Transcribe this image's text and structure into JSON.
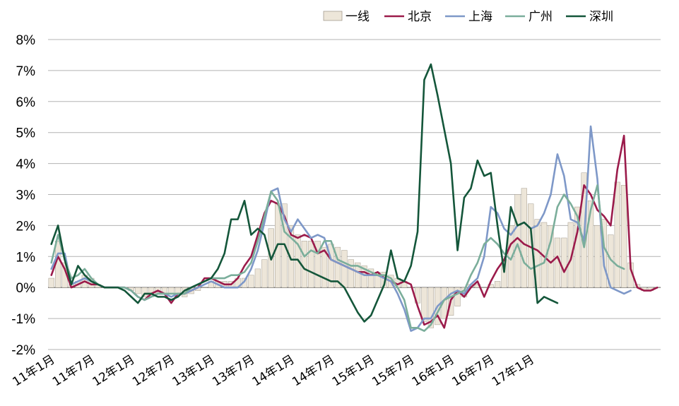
{
  "chart_data": {
    "type": "bar",
    "title": "",
    "xlabel": "",
    "ylabel": "",
    "ylim": [
      -2,
      8
    ],
    "y_ticks": [
      "-2%",
      "-1%",
      "0%",
      "1%",
      "2%",
      "3%",
      "4%",
      "5%",
      "6%",
      "7%",
      "8%"
    ],
    "y_tick_values": [
      -2,
      -1,
      0,
      1,
      2,
      3,
      4,
      5,
      6,
      7,
      8
    ],
    "x_tick_labels": [
      "11年1月",
      "11年7月",
      "12年1月",
      "12年7月",
      "13年1月",
      "13年7月",
      "14年1月",
      "14年7月",
      "15年1月",
      "15年7月",
      "16年1月",
      "16年7月",
      "17年1月"
    ],
    "legend_position": "top-right",
    "grid": "horizontal",
    "series": [
      {
        "name": "一线",
        "type": "bar",
        "color": "#EDE6D9",
        "values": [
          0.3,
          1.5,
          0.8,
          0.1,
          0.2,
          0.4,
          0.3,
          0.1,
          0.0,
          0.0,
          0.0,
          0.0,
          -0.1,
          -0.2,
          -0.3,
          -0.3,
          -0.2,
          -0.2,
          -0.2,
          -0.2,
          -0.3,
          -0.2,
          -0.1,
          0.0,
          0.2,
          0.2,
          0.2,
          0.2,
          0.3,
          0.3,
          0.4,
          0.6,
          0.9,
          1.9,
          2.7,
          2.7,
          2.0,
          1.7,
          1.5,
          1.5,
          1.5,
          1.3,
          1.4,
          1.3,
          1.2,
          0.9,
          0.8,
          0.7,
          0.6,
          0.5,
          0.5,
          0.4,
          0.3,
          0.2,
          0.0,
          -0.5,
          -1.1,
          -1.3,
          -1.2,
          -1.0,
          -0.9,
          -0.6,
          -0.3,
          0.1,
          0.1,
          0.0,
          0.1,
          0.2,
          0.9,
          2.0,
          3.0,
          3.2,
          2.7,
          2.2,
          2.1,
          2.0,
          1.6,
          1.6,
          2.1,
          2.6,
          3.7,
          2.8,
          2.0,
          2.2,
          1.7,
          3.4,
          3.3,
          0.8,
          0.1,
          -0.1,
          -0.1,
          0.0
        ]
      },
      {
        "name": "北京",
        "type": "line",
        "color": "#9B1B4B",
        "values": [
          0.4,
          1.0,
          0.6,
          0.0,
          0.1,
          0.2,
          0.1,
          0.1,
          0.0,
          0.0,
          0.0,
          0.0,
          -0.1,
          -0.3,
          -0.4,
          -0.2,
          -0.1,
          -0.2,
          -0.5,
          -0.2,
          -0.2,
          -0.1,
          0.0,
          0.3,
          0.3,
          0.2,
          0.1,
          0.1,
          0.3,
          0.7,
          1.0,
          1.7,
          2.4,
          2.8,
          2.7,
          2.3,
          1.7,
          1.6,
          1.7,
          1.6,
          1.1,
          1.2,
          0.9,
          0.8,
          0.7,
          0.6,
          0.5,
          0.5,
          0.4,
          0.5,
          0.3,
          0.2,
          0.1,
          0.2,
          0.1,
          -0.6,
          -1.2,
          -1.1,
          -0.9,
          -1.3,
          -0.4,
          -0.1,
          -0.3,
          0.0,
          0.2,
          -0.3,
          0.2,
          0.6,
          0.9,
          1.4,
          1.6,
          1.4,
          1.3,
          1.2,
          1.0,
          0.8,
          1.0,
          0.5,
          0.9,
          1.8,
          3.3,
          3.0,
          2.5,
          2.3,
          2.0,
          3.8,
          4.9,
          0.6,
          0.0,
          -0.1,
          -0.1,
          0.0
        ]
      },
      {
        "name": "上海",
        "type": "line",
        "color": "#7E98C8",
        "values": [
          0.6,
          1.1,
          1.1,
          0.1,
          0.2,
          0.3,
          0.2,
          0.1,
          0.0,
          0.0,
          0.0,
          0.0,
          -0.1,
          -0.3,
          -0.4,
          -0.3,
          -0.2,
          -0.2,
          -0.3,
          -0.2,
          -0.2,
          -0.1,
          0.0,
          0.1,
          0.2,
          0.1,
          0.0,
          0.0,
          0.0,
          0.2,
          0.6,
          1.2,
          2.1,
          3.1,
          3.2,
          2.2,
          1.8,
          2.2,
          1.9,
          1.6,
          1.7,
          1.6,
          0.9,
          0.8,
          0.7,
          0.6,
          0.5,
          0.4,
          0.4,
          0.4,
          0.3,
          0.2,
          -0.2,
          -0.7,
          -1.4,
          -1.3,
          -1.0,
          -1.0,
          -0.6,
          -0.4,
          -0.2,
          -0.1,
          -0.2,
          0.1,
          0.3,
          1.0,
          2.6,
          2.4,
          1.9,
          1.7,
          2.0,
          2.1,
          1.9,
          2.0,
          2.4,
          3.0,
          4.3,
          3.6,
          2.2,
          2.1,
          1.5,
          5.2,
          3.5,
          0.7,
          0.0,
          -0.1,
          -0.2,
          -0.1
        ]
      },
      {
        "name": "广州",
        "type": "line",
        "color": "#7BAE9B",
        "values": [
          0.8,
          1.7,
          0.9,
          0.3,
          0.4,
          0.6,
          0.3,
          0.1,
          0.0,
          0.0,
          0.0,
          0.0,
          -0.1,
          -0.3,
          -0.4,
          -0.3,
          -0.2,
          -0.2,
          -0.2,
          -0.2,
          -0.2,
          0.0,
          0.1,
          0.2,
          0.3,
          0.3,
          0.3,
          0.4,
          0.4,
          0.5,
          0.8,
          1.5,
          2.3,
          3.1,
          2.8,
          1.8,
          1.6,
          1.4,
          1.0,
          1.2,
          1.1,
          1.5,
          1.5,
          0.9,
          0.8,
          0.7,
          0.7,
          0.6,
          0.5,
          0.4,
          0.4,
          0.3,
          0.0,
          -0.4,
          -1.3,
          -1.3,
          -1.4,
          -1.2,
          -0.8,
          -0.4,
          -0.3,
          -0.2,
          -0.1,
          0.4,
          0.8,
          1.4,
          1.6,
          1.4,
          1.1,
          0.9,
          1.4,
          0.8,
          0.6,
          0.7,
          0.8,
          1.5,
          2.6,
          3.0,
          2.7,
          2.3,
          1.3,
          2.5,
          3.3,
          1.3,
          0.9,
          0.7,
          0.6
        ]
      },
      {
        "name": "深圳",
        "type": "line",
        "color": "#14563A",
        "values": [
          1.4,
          2.0,
          0.9,
          0.1,
          0.7,
          0.4,
          0.2,
          0.1,
          0.0,
          0.0,
          0.0,
          -0.1,
          -0.3,
          -0.5,
          -0.2,
          -0.2,
          -0.3,
          -0.3,
          -0.4,
          -0.3,
          -0.1,
          0.0,
          0.1,
          0.2,
          0.3,
          0.6,
          1.1,
          2.2,
          2.2,
          2.8,
          1.7,
          1.9,
          1.7,
          0.9,
          1.4,
          1.4,
          0.9,
          0.9,
          0.6,
          0.5,
          0.4,
          0.3,
          0.2,
          0.2,
          0.0,
          -0.4,
          -0.8,
          -1.1,
          -0.9,
          -0.4,
          0.1,
          1.2,
          0.3,
          0.2,
          0.7,
          1.8,
          6.7,
          7.2,
          6.2,
          5.1,
          4.0,
          1.2,
          2.9,
          3.2,
          4.1,
          3.6,
          3.7,
          2.0,
          0.5,
          2.6,
          2.0,
          2.1,
          1.9,
          -0.5,
          -0.3,
          -0.4,
          -0.5
        ]
      }
    ]
  },
  "legend": {
    "items": [
      {
        "label": "一线",
        "kind": "bar",
        "color": "#EDE6D9"
      },
      {
        "label": "北京",
        "kind": "line",
        "color": "#9B1B4B"
      },
      {
        "label": "上海",
        "kind": "line",
        "color": "#7E98C8"
      },
      {
        "label": "广州",
        "kind": "line",
        "color": "#7BAE9B"
      },
      {
        "label": "深圳",
        "kind": "line",
        "color": "#14563A"
      }
    ]
  }
}
